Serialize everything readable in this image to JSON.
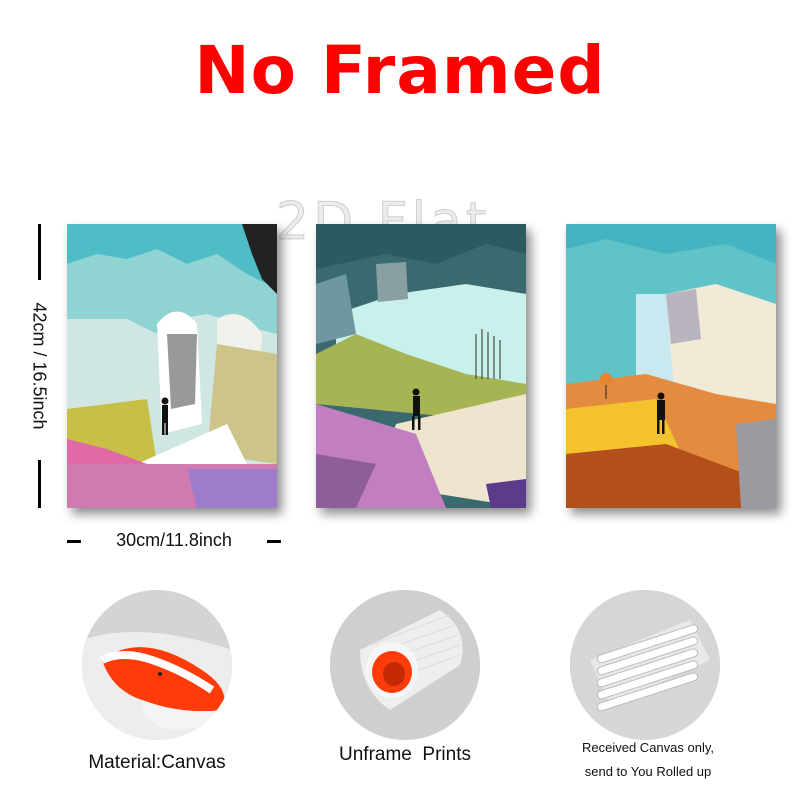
{
  "header": {
    "title": "No Framed",
    "title_color": "#ff0000"
  },
  "watermark": {
    "text": "2D Flat"
  },
  "dimensions": {
    "height_label": "42cm / 16.5inch",
    "width_label": "30cm/11.8inch"
  },
  "artworks": [
    {
      "subject": "figure-walking-through-arch"
    },
    {
      "subject": "figure-walking-on-hillside"
    },
    {
      "subject": "figure-walking-toward-sun"
    }
  ],
  "features": [
    {
      "caption": "Material:Canvas",
      "image": "canvas-roll-edge"
    },
    {
      "caption": "Unframe  Prints",
      "image": "canvas-roll-tube"
    },
    {
      "caption_line1": "Received Canvas only,",
      "caption_line2": "send to You Rolled up",
      "image": "rolled-canvas-tubes"
    }
  ],
  "colors": {
    "accent_orange": "#ff3b0a",
    "teal": "#5fc3c8"
  }
}
